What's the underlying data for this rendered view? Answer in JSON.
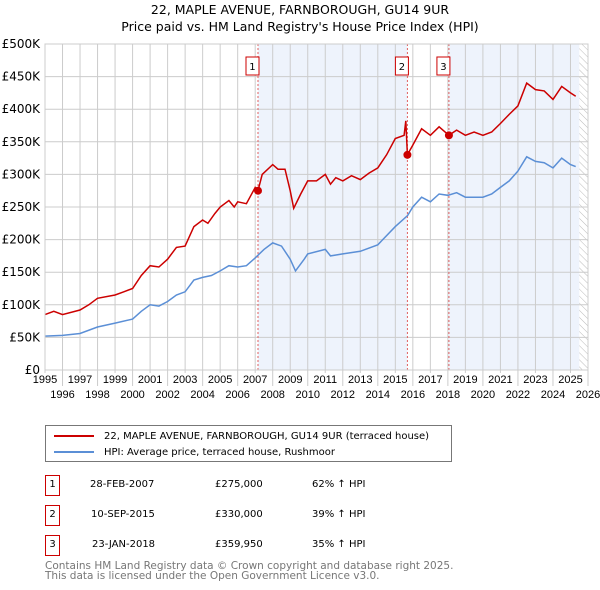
{
  "chart_data": {
    "type": "line",
    "title": "22, MAPLE AVENUE, FARNBOROUGH, GU14 9UR",
    "subtitle": "Price paid vs. HM Land Registry's House Price Index (HPI)",
    "xlim": [
      1995,
      2026
    ],
    "ylim": [
      0,
      500000
    ],
    "x_ticks": [
      "1995",
      "1996",
      "1997",
      "1998",
      "1999",
      "2000",
      "2001",
      "2002",
      "2003",
      "2004",
      "2005",
      "2006",
      "2007",
      "2008",
      "2009",
      "2010",
      "2011",
      "2012",
      "2013",
      "2014",
      "2015",
      "2016",
      "2017",
      "2018",
      "2019",
      "2020",
      "2021",
      "2022",
      "2023",
      "2024",
      "2025",
      "2026"
    ],
    "y_ticks": [
      {
        "v": 0,
        "label": "£0"
      },
      {
        "v": 50000,
        "label": "£50K"
      },
      {
        "v": 100000,
        "label": "£100K"
      },
      {
        "v": 150000,
        "label": "£150K"
      },
      {
        "v": 200000,
        "label": "£200K"
      },
      {
        "v": 250000,
        "label": "£250K"
      },
      {
        "v": 300000,
        "label": "£300K"
      },
      {
        "v": 350000,
        "label": "£350K"
      },
      {
        "v": 400000,
        "label": "£400K"
      },
      {
        "v": 450000,
        "label": "£450K"
      },
      {
        "v": 500000,
        "label": "£500K"
      }
    ],
    "grid": true,
    "series": [
      {
        "name": "22, MAPLE AVENUE, FARNBOROUGH, GU14 9UR (terraced house)",
        "color": "#cc0000",
        "x": [
          1995,
          1995.5,
          1996,
          1997,
          1997.5,
          1998,
          1999,
          1999.5,
          2000,
          2000.5,
          2001,
          2001.5,
          2002,
          2002.5,
          2003,
          2003.5,
          2004,
          2004.3,
          2004.7,
          2005,
          2005.5,
          2005.8,
          2006,
          2006.5,
          2007,
          2007.16,
          2007.4,
          2008,
          2008.3,
          2008.7,
          2009,
          2009.2,
          2009.6,
          2010,
          2010.5,
          2011,
          2011.3,
          2011.6,
          2012,
          2012.5,
          2013,
          2013.5,
          2014,
          2014.5,
          2015,
          2015.5,
          2015.6,
          2015.69,
          2016,
          2016.5,
          2017,
          2017.5,
          2018.06,
          2018.5,
          2019,
          2019.5,
          2020,
          2020.5,
          2021,
          2021.5,
          2022,
          2022.5,
          2023,
          2023.5,
          2024,
          2024.5,
          2025,
          2025.3
        ],
        "y": [
          85000,
          90000,
          85000,
          92000,
          100000,
          110000,
          115000,
          120000,
          125000,
          145000,
          160000,
          158000,
          170000,
          188000,
          190000,
          220000,
          230000,
          225000,
          240000,
          250000,
          260000,
          250000,
          258000,
          255000,
          280000,
          275000,
          300000,
          315000,
          308000,
          308000,
          275000,
          248000,
          270000,
          290000,
          290000,
          300000,
          285000,
          295000,
          290000,
          298000,
          292000,
          302000,
          310000,
          330000,
          355000,
          360000,
          382000,
          330000,
          345000,
          370000,
          360000,
          373000,
          359950,
          368000,
          360000,
          365000,
          360000,
          365000,
          378000,
          392000,
          405000,
          440000,
          430000,
          428000,
          415000,
          435000,
          425000,
          420000
        ]
      },
      {
        "name": "HPI: Average price, terraced house, Rushmoor",
        "color": "#5b8fd6",
        "x": [
          1995,
          1996,
          1997,
          1998,
          1999,
          2000,
          2000.5,
          2001,
          2001.5,
          2002,
          2002.5,
          2003,
          2003.5,
          2004,
          2004.5,
          2005,
          2005.5,
          2006,
          2006.5,
          2007,
          2007.5,
          2008,
          2008.5,
          2009,
          2009.3,
          2009.8,
          2010,
          2011,
          2011.3,
          2012,
          2013,
          2014,
          2015,
          2015.7,
          2016,
          2016.5,
          2017,
          2017.5,
          2018,
          2018.5,
          2019,
          2020,
          2020.5,
          2021,
          2021.5,
          2022,
          2022.5,
          2023,
          2023.5,
          2024,
          2024.5,
          2025,
          2025.3
        ],
        "y": [
          52000,
          53000,
          56000,
          66000,
          72000,
          78000,
          90000,
          100000,
          98000,
          105000,
          115000,
          120000,
          138000,
          142000,
          145000,
          152000,
          160000,
          158000,
          160000,
          172000,
          185000,
          195000,
          190000,
          170000,
          152000,
          170000,
          178000,
          185000,
          175000,
          178000,
          182000,
          192000,
          220000,
          237000,
          250000,
          265000,
          258000,
          270000,
          268000,
          272000,
          265000,
          265000,
          270000,
          280000,
          290000,
          305000,
          327000,
          320000,
          318000,
          310000,
          325000,
          315000,
          312000
        ]
      }
    ],
    "transactions": [
      {
        "label": "1",
        "date": "28-FEB-2007",
        "x": 2007.16,
        "price": "£275,000",
        "value": 275000,
        "hpi": "62% ↑ HPI"
      },
      {
        "label": "2",
        "date": "10-SEP-2015",
        "x": 2015.69,
        "price": "£330,000",
        "value": 330000,
        "hpi": "39% ↑ HPI"
      },
      {
        "label": "3",
        "date": "23-JAN-2018",
        "x": 2018.06,
        "price": "£359,950",
        "value": 359950,
        "hpi": "35% ↑ HPI"
      }
    ],
    "shaded_ranges": [
      [
        2007.16,
        2015.69
      ],
      [
        2018.06,
        2025.5
      ]
    ],
    "hatched_from": 2025.5,
    "legend_position": "below"
  },
  "footer": {
    "line1": "Contains HM Land Registry data © Crown copyright and database right 2025.",
    "line2": "This data is licensed under the Open Government Licence v3.0."
  }
}
